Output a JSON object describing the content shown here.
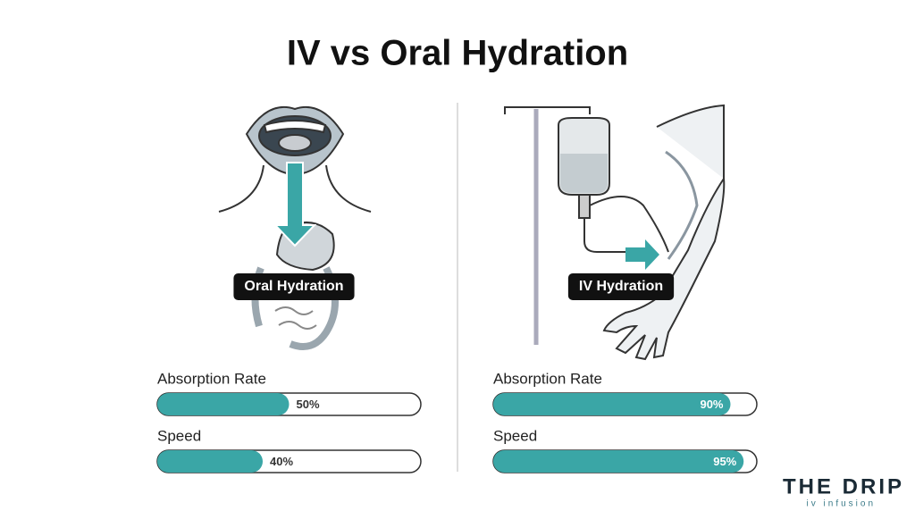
{
  "title": "IV vs Oral Hydration",
  "xlim": [
    0,
    100
  ],
  "panels": [
    {
      "label": "Oral Hydration",
      "metrics": [
        {
          "name": "Absorption Rate",
          "value": 50,
          "value_label": "50%"
        },
        {
          "name": "Speed",
          "value": 40,
          "value_label": "40%"
        }
      ]
    },
    {
      "label": "IV Hydration",
      "metrics": [
        {
          "name": "Absorption Rate",
          "value": 90,
          "value_label": "90%"
        },
        {
          "name": "Speed",
          "value": 95,
          "value_label": "95%"
        }
      ]
    }
  ],
  "logo": {
    "name": "THE DRIP",
    "tagline": "iv infusion"
  }
}
